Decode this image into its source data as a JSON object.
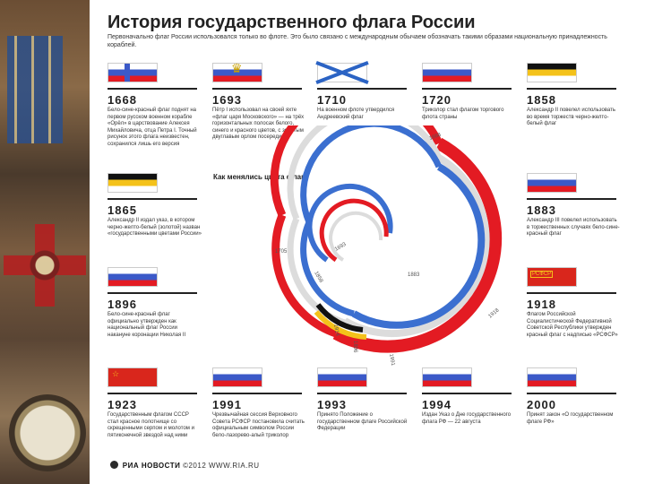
{
  "title": "История государственного флага России",
  "subtitle": "Первоначально флаг России использовался только во флоте. Это было связано с международным обычаем обозначать такими образами национальную принадлежность кораблей.",
  "spiral_label": "Как менялись цвета флага",
  "footer": {
    "brand": "РИА НОВОСТИ",
    "credit": "©2012 WWW.RIA.RU"
  },
  "spiral_years": [
    "1668",
    "1693",
    "1705",
    "1858",
    "1883",
    "1896",
    "1914",
    "1918",
    "1991"
  ],
  "cells": [
    {
      "year": "1668",
      "desc": "Бело-сине-красный флаг поднят на первом русском военном корабле «Орёл» в царствование Алексея Михайловича, отца Петра I. Точный рисунок этого флага неизвестен, сохранился лишь его версия"
    },
    {
      "year": "1693",
      "desc": "Пётр I использовал на своей яхте «флаг царя Московского» — на трёх горизонтальных полосах белого, синего и красного цветов, с золотым двуглавым орлом посередине"
    },
    {
      "year": "1710",
      "desc": "На военном флоте утвердился Андреевский флаг"
    },
    {
      "year": "1720",
      "desc": "Триколор стал флагом торгового флота страны"
    },
    {
      "year": "1858",
      "desc": "Александр II повелел использовать во время торжеств черно-желто-белый флаг"
    },
    {
      "year": "1865",
      "desc": "Александр II издал указ, в котором черно-желто-белый (золотой) назван «государственными цветами России»"
    },
    {
      "year": "1883",
      "desc": "Александр III повелел использовать в торжественных случаях бело-сине-красный флаг"
    },
    {
      "year": "1896",
      "desc": "Бело-сине-красный флаг официально утвержден как национальный флаг России накануне коронации Николая II"
    },
    {
      "year": "1918",
      "desc": "Флагом Российской Социалистической Федеративной Советской Республики утвержден красный флаг с надписью «РСФСР»"
    },
    {
      "year": "1923",
      "desc": "Государственным флагом СССР стал красное полотнище со скрещенными серпом и молотом и пятиконечной звездой над ними"
    },
    {
      "year": "1991",
      "desc": "Чрезвычайная сессия Верховного Совета РСФСР постановила считать официальным символом России бело-лазорево-алый триколор"
    },
    {
      "year": "1993",
      "desc": "Принято Положение о государственном флаге Российской Федерации"
    },
    {
      "year": "1994",
      "desc": "Издан Указ о Дне государственного флага РФ — 22 августа"
    },
    {
      "year": "2000",
      "desc": "Принят закон «О государственном флаге РФ»"
    }
  ]
}
